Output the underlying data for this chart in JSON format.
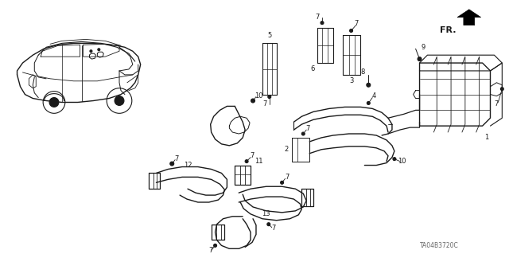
{
  "background_color": "#ffffff",
  "line_color": "#1a1a1a",
  "figure_width": 6.4,
  "figure_height": 3.19,
  "dpi": 100,
  "bottom_text": "TA04B3720C"
}
